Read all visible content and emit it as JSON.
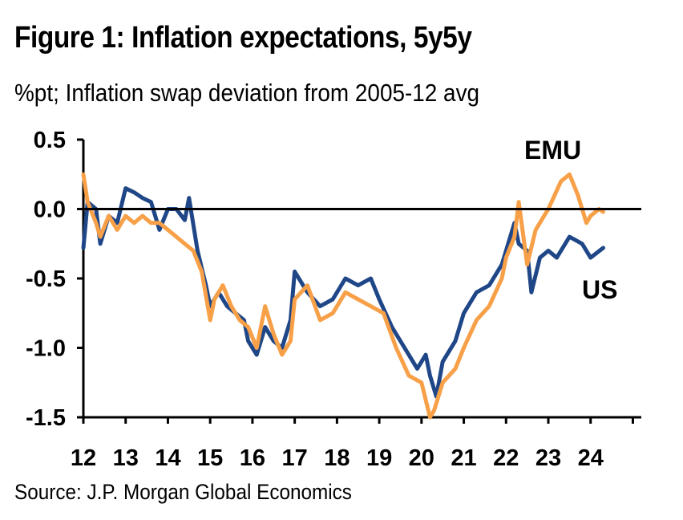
{
  "header": {
    "title": "Figure 1: Inflation expectations, 5y5y",
    "subtitle": "%pt; Inflation swap deviation from 2005-12 avg"
  },
  "footer": {
    "source": "Source: J.P. Morgan Global Economics"
  },
  "chart_data": {
    "type": "line",
    "title": "Figure 1: Inflation expectations, 5y5y",
    "subtitle": "%pt; Inflation swap deviation from 2005-12 avg",
    "xlabel": "",
    "ylabel": "",
    "xlim": [
      2012,
      2025.2
    ],
    "ylim": [
      -1.5,
      0.5
    ],
    "xticks": [
      2012,
      2013,
      2014,
      2015,
      2016,
      2017,
      2018,
      2019,
      2020,
      2021,
      2022,
      2023,
      2024
    ],
    "xtick_labels": [
      "12",
      "13",
      "14",
      "15",
      "16",
      "17",
      "18",
      "19",
      "20",
      "21",
      "22",
      "23",
      "24"
    ],
    "yticks": [
      0.5,
      0.0,
      -0.5,
      -1.0,
      -1.5
    ],
    "ytick_labels": [
      "0.5",
      "0.0",
      "-0.5",
      "-1.0",
      "-1.5"
    ],
    "reference_line_y": 0.0,
    "grid": false,
    "series": [
      {
        "name": "US",
        "color": "#1f4788",
        "x": [
          2012.0,
          2012.1,
          2012.3,
          2012.4,
          2012.6,
          2012.8,
          2013.0,
          2013.2,
          2013.4,
          2013.6,
          2013.8,
          2014.0,
          2014.2,
          2014.4,
          2014.5,
          2014.7,
          2014.9,
          2015.0,
          2015.2,
          2015.4,
          2015.6,
          2015.8,
          2015.9,
          2016.1,
          2016.3,
          2016.5,
          2016.7,
          2016.9,
          2017.0,
          2017.3,
          2017.6,
          2017.9,
          2018.2,
          2018.5,
          2018.8,
          2019.0,
          2019.3,
          2019.6,
          2019.9,
          2020.1,
          2020.2,
          2020.35,
          2020.5,
          2020.8,
          2021.0,
          2021.3,
          2021.6,
          2021.9,
          2022.0,
          2022.1,
          2022.2,
          2022.3,
          2022.5,
          2022.6,
          2022.8,
          2023.0,
          2023.2,
          2023.5,
          2023.8,
          2024.0,
          2024.3
        ],
        "y": [
          -0.28,
          0.05,
          0.0,
          -0.25,
          -0.05,
          -0.1,
          0.15,
          0.12,
          0.08,
          0.05,
          -0.15,
          0.0,
          0.0,
          -0.08,
          0.08,
          -0.3,
          -0.55,
          -0.7,
          -0.6,
          -0.7,
          -0.75,
          -0.8,
          -0.95,
          -1.05,
          -0.85,
          -0.95,
          -1.0,
          -0.8,
          -0.45,
          -0.6,
          -0.7,
          -0.65,
          -0.5,
          -0.55,
          -0.5,
          -0.65,
          -0.85,
          -1.0,
          -1.15,
          -1.05,
          -1.2,
          -1.35,
          -1.1,
          -0.95,
          -0.75,
          -0.6,
          -0.55,
          -0.4,
          -0.3,
          -0.2,
          -0.1,
          -0.25,
          -0.3,
          -0.6,
          -0.35,
          -0.3,
          -0.35,
          -0.2,
          -0.25,
          -0.35,
          -0.28
        ]
      },
      {
        "name": "EMU",
        "color": "#f7a048",
        "x": [
          2012.0,
          2012.1,
          2012.3,
          2012.4,
          2012.6,
          2012.8,
          2013.0,
          2013.2,
          2013.4,
          2013.6,
          2013.8,
          2014.0,
          2014.2,
          2014.4,
          2014.6,
          2014.8,
          2015.0,
          2015.1,
          2015.3,
          2015.5,
          2015.7,
          2015.9,
          2016.1,
          2016.3,
          2016.5,
          2016.7,
          2016.9,
          2017.0,
          2017.3,
          2017.6,
          2017.9,
          2018.2,
          2018.5,
          2018.8,
          2019.1,
          2019.4,
          2019.7,
          2020.0,
          2020.2,
          2020.3,
          2020.5,
          2020.8,
          2021.0,
          2021.3,
          2021.6,
          2021.9,
          2022.0,
          2022.2,
          2022.3,
          2022.5,
          2022.7,
          2022.9,
          2023.0,
          2023.3,
          2023.5,
          2023.7,
          2023.9,
          2024.0,
          2024.2,
          2024.3
        ],
        "y": [
          0.25,
          0.05,
          -0.1,
          -0.2,
          -0.05,
          -0.15,
          -0.05,
          -0.1,
          -0.05,
          -0.1,
          -0.1,
          -0.15,
          -0.2,
          -0.25,
          -0.3,
          -0.45,
          -0.8,
          -0.65,
          -0.55,
          -0.7,
          -0.8,
          -0.85,
          -1.0,
          -0.7,
          -0.9,
          -1.05,
          -0.95,
          -0.65,
          -0.55,
          -0.8,
          -0.75,
          -0.6,
          -0.65,
          -0.7,
          -0.75,
          -1.0,
          -1.2,
          -1.25,
          -1.5,
          -1.45,
          -1.25,
          -1.15,
          -1.0,
          -0.8,
          -0.7,
          -0.5,
          -0.35,
          -0.2,
          0.05,
          -0.4,
          -0.15,
          -0.05,
          0.0,
          0.2,
          0.25,
          0.1,
          -0.1,
          -0.05,
          0.0,
          -0.02
        ]
      }
    ]
  }
}
